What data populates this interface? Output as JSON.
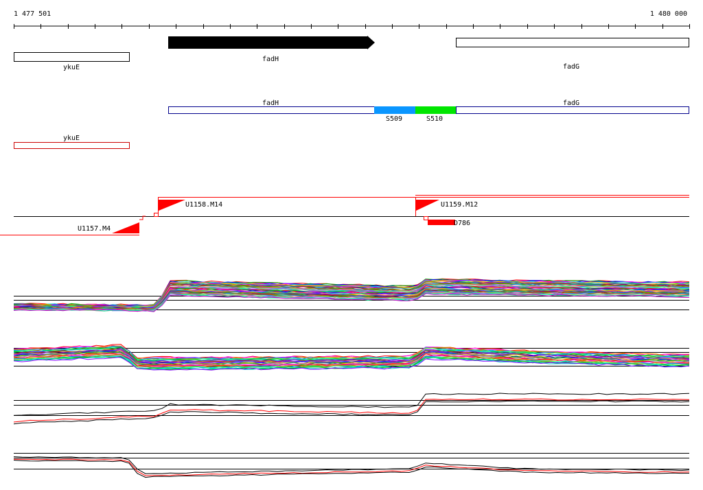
{
  "ruler": {
    "start_label": "1 477 501",
    "end_label": "1 480 000"
  },
  "genes": {
    "ykuE": "ykuE",
    "fadH": "fadH",
    "fadG": "fadG"
  },
  "segments": {
    "s509": "S509",
    "s510": "S510"
  },
  "features": {
    "u1157": "U1157.M4",
    "u1158": "U1158.M14",
    "u1159": "U1159.M12",
    "d786": "D786"
  },
  "colors": {
    "gene_arrow": "#000000",
    "operon_box": "#00008b",
    "segment_s509": "#0a96ff",
    "segment_s510": "#00e600",
    "feature_red": "#ff0000",
    "ykuE_box2": "#cc0000",
    "trace_palette": [
      "#ff0000",
      "#00aa00",
      "#0000ff",
      "#ff00ff",
      "#00cccc",
      "#cccc00",
      "#ff8800",
      "#8800ff",
      "#008888",
      "#888800",
      "#aa0044",
      "#44aa00",
      "#0088ff",
      "#aa6600",
      "#ff66aa",
      "#66ff66",
      "#6666ff",
      "#999999",
      "#00ff99",
      "#cc00cc"
    ]
  }
}
